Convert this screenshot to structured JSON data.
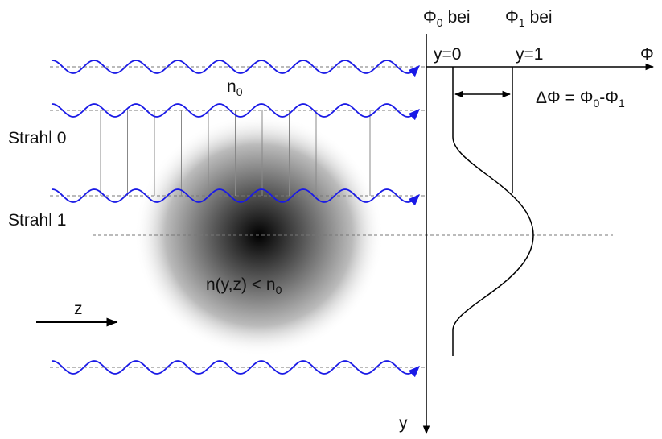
{
  "column_headers": [
    {
      "line1": [
        "Φ",
        "0",
        "bei"
      ],
      "line2": "y=0"
    },
    {
      "line1": [
        "Φ",
        "1",
        "bei"
      ],
      "line2": "y=1"
    }
  ],
  "axis_labels": {
    "phi": "Φ",
    "y": "y",
    "z": "z"
  },
  "medium_label": [
    "n",
    "0"
  ],
  "phase_difference": [
    "ΔΦ = Φ",
    "0",
    "-Φ",
    "1"
  ],
  "beams": [
    "Strahl 0",
    "Strahl 1"
  ],
  "gradient_label": [
    "n(y,z) < n",
    "0"
  ]
}
